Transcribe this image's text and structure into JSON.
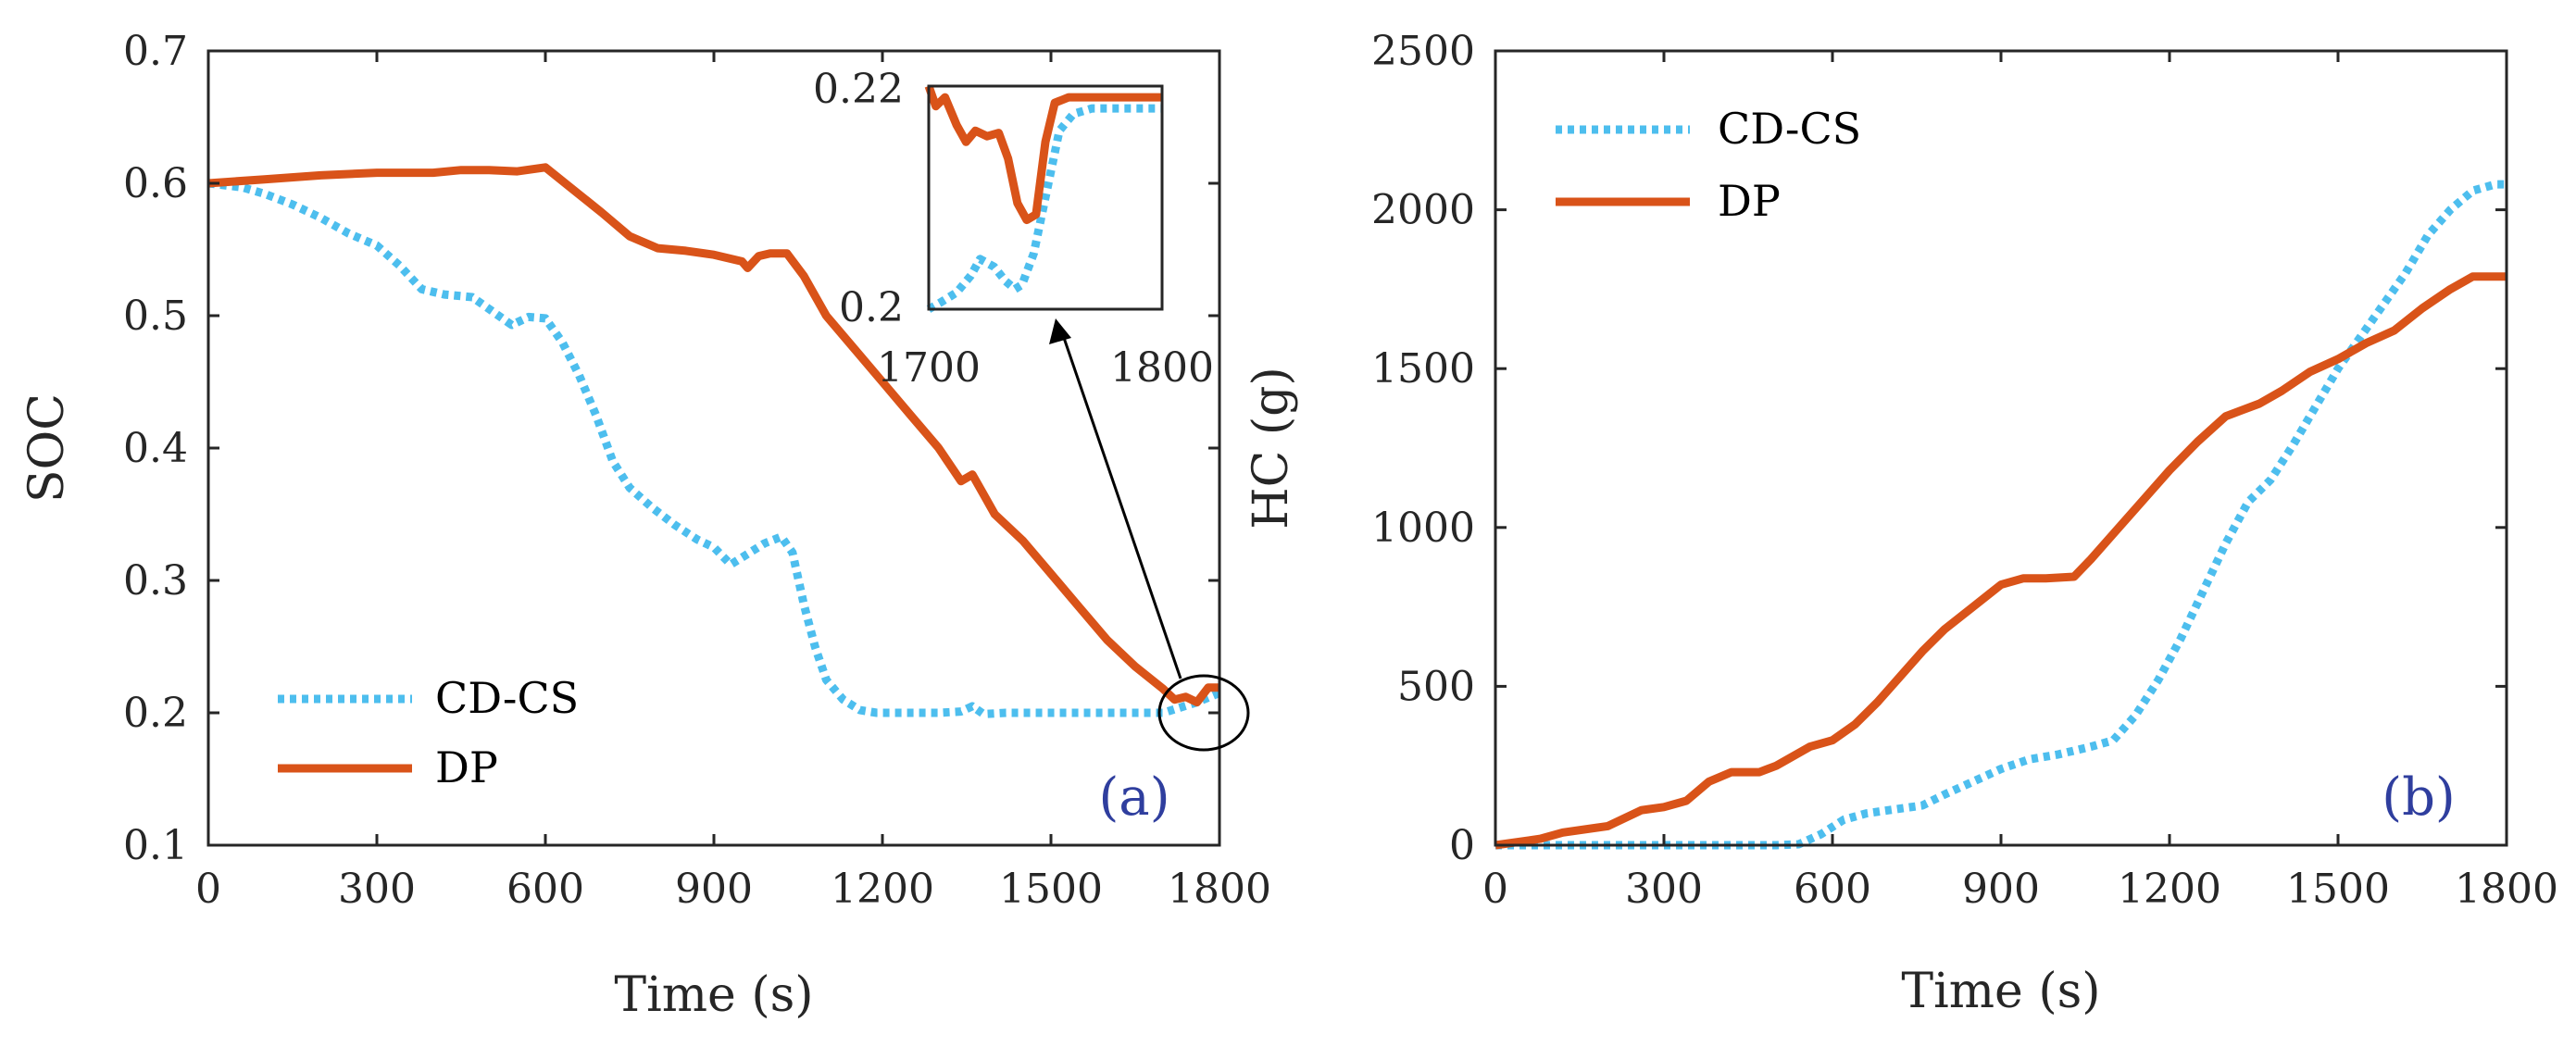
{
  "colors": {
    "cdcs": "#4DBEEE",
    "dp": "#D95319",
    "axis": "#262626",
    "panel_label": "#2F3E9E"
  },
  "chart_data": [
    {
      "type": "line",
      "panel": "(a)",
      "xlabel": "Time (s)",
      "ylabel": "SOC",
      "xlim": [
        0,
        1800
      ],
      "ylim": [
        0.1,
        0.7
      ],
      "xticks": [
        0,
        300,
        600,
        900,
        1200,
        1500,
        1800
      ],
      "yticks": [
        0.1,
        0.2,
        0.3,
        0.4,
        0.5,
        0.6,
        0.7
      ],
      "ytick_labels": [
        "0.1",
        "0.2",
        "0.3",
        "0.4",
        "0.5",
        "0.6",
        "0.7"
      ],
      "legend_position": "bottom-left",
      "series": [
        {
          "name": "CD-CS",
          "style": "dotted",
          "x": [
            0,
            60,
            100,
            150,
            200,
            250,
            300,
            340,
            380,
            420,
            470,
            500,
            540,
            570,
            600,
            630,
            660,
            690,
            720,
            750,
            790,
            830,
            870,
            900,
            930,
            960,
            990,
            1020,
            1040,
            1060,
            1080,
            1100,
            1130,
            1160,
            1190,
            1220,
            1260,
            1300,
            1340,
            1360,
            1380,
            1420,
            1500,
            1600,
            1700,
            1760,
            1800
          ],
          "y": [
            0.6,
            0.597,
            0.592,
            0.584,
            0.574,
            0.562,
            0.553,
            0.538,
            0.52,
            0.516,
            0.514,
            0.505,
            0.493,
            0.499,
            0.498,
            0.48,
            0.455,
            0.425,
            0.39,
            0.37,
            0.355,
            0.342,
            0.331,
            0.325,
            0.312,
            0.32,
            0.328,
            0.333,
            0.321,
            0.282,
            0.25,
            0.225,
            0.21,
            0.202,
            0.2,
            0.2,
            0.2,
            0.2,
            0.201,
            0.205,
            0.199,
            0.2,
            0.2,
            0.2,
            0.2,
            0.208,
            0.215
          ]
        },
        {
          "name": "DP",
          "style": "solid",
          "x": [
            0,
            100,
            200,
            300,
            400,
            450,
            500,
            550,
            600,
            650,
            700,
            750,
            800,
            850,
            900,
            950,
            960,
            980,
            1000,
            1030,
            1060,
            1100,
            1150,
            1200,
            1250,
            1300,
            1340,
            1360,
            1380,
            1400,
            1450,
            1500,
            1550,
            1600,
            1650,
            1700,
            1720,
            1740,
            1760,
            1780,
            1800
          ],
          "y": [
            0.6,
            0.603,
            0.606,
            0.608,
            0.608,
            0.61,
            0.61,
            0.609,
            0.612,
            0.595,
            0.578,
            0.56,
            0.551,
            0.549,
            0.546,
            0.541,
            0.536,
            0.545,
            0.547,
            0.547,
            0.53,
            0.5,
            0.475,
            0.45,
            0.425,
            0.4,
            0.375,
            0.38,
            0.365,
            0.35,
            0.33,
            0.305,
            0.28,
            0.255,
            0.235,
            0.218,
            0.21,
            0.212,
            0.208,
            0.219,
            0.219
          ]
        }
      ],
      "inset": {
        "xlim": [
          1700,
          1800
        ],
        "ylim": [
          0.2,
          0.22
        ],
        "xtick_labels": [
          "1700",
          "1800"
        ],
        "ytick_labels": [
          "0.2",
          "0.22"
        ],
        "series": [
          {
            "name": "CD-CS",
            "x": [
              1700,
              1705,
              1712,
              1718,
              1722,
              1728,
              1733,
              1737,
              1740,
              1745,
              1750,
              1756,
              1762,
              1770,
              1780,
              1800
            ],
            "y": [
              0.2,
              0.2006,
              0.2015,
              0.203,
              0.2045,
              0.2038,
              0.2025,
              0.2018,
              0.2022,
              0.205,
              0.21,
              0.216,
              0.2175,
              0.218,
              0.218,
              0.218
            ]
          },
          {
            "name": "DP",
            "x": [
              1700,
              1703,
              1707,
              1712,
              1716,
              1720,
              1725,
              1730,
              1734,
              1738,
              1742,
              1746,
              1750,
              1754,
              1760,
              1770,
              1785,
              1800
            ],
            "y": [
              0.22,
              0.2182,
              0.219,
              0.2165,
              0.215,
              0.216,
              0.2155,
              0.2158,
              0.2135,
              0.2095,
              0.208,
              0.2085,
              0.215,
              0.2185,
              0.219,
              0.219,
              0.219,
              0.219
            ]
          }
        ]
      }
    },
    {
      "type": "line",
      "panel": "(b)",
      "xlabel": "Time (s)",
      "ylabel": "HC (g)",
      "xlim": [
        0,
        1800
      ],
      "ylim": [
        0,
        2500
      ],
      "xticks": [
        0,
        300,
        600,
        900,
        1200,
        1500,
        1800
      ],
      "yticks": [
        0,
        500,
        1000,
        1500,
        2000,
        2500
      ],
      "legend_position": "top-left",
      "series": [
        {
          "name": "CD-CS",
          "style": "dotted",
          "x": [
            0,
            100,
            200,
            300,
            400,
            500,
            540,
            580,
            620,
            660,
            700,
            760,
            800,
            850,
            900,
            950,
            1000,
            1060,
            1100,
            1140,
            1180,
            1220,
            1260,
            1300,
            1340,
            1380,
            1420,
            1460,
            1500,
            1540,
            1580,
            1620,
            1660,
            1700,
            1740,
            1780,
            1800
          ],
          "y": [
            0,
            0,
            0,
            0,
            0,
            0,
            3,
            35,
            80,
            100,
            110,
            125,
            160,
            200,
            240,
            270,
            285,
            310,
            330,
            410,
            520,
            650,
            800,
            950,
            1080,
            1150,
            1260,
            1380,
            1500,
            1600,
            1700,
            1800,
            1920,
            2000,
            2060,
            2080,
            2080
          ]
        },
        {
          "name": "DP",
          "style": "solid",
          "x": [
            0,
            80,
            120,
            200,
            260,
            300,
            340,
            380,
            420,
            470,
            500,
            560,
            600,
            640,
            680,
            720,
            760,
            800,
            850,
            900,
            940,
            980,
            1030,
            1060,
            1100,
            1150,
            1200,
            1250,
            1300,
            1330,
            1360,
            1400,
            1450,
            1500,
            1550,
            1600,
            1650,
            1700,
            1740,
            1760,
            1800
          ],
          "y": [
            0,
            20,
            40,
            60,
            110,
            120,
            140,
            200,
            230,
            230,
            250,
            310,
            330,
            380,
            450,
            530,
            610,
            680,
            750,
            820,
            840,
            840,
            845,
            900,
            980,
            1080,
            1180,
            1270,
            1350,
            1370,
            1390,
            1430,
            1490,
            1530,
            1580,
            1620,
            1690,
            1750,
            1790,
            1790,
            1790
          ]
        }
      ]
    }
  ],
  "legend_a": {
    "cdcs": "CD-CS",
    "dp": "DP"
  },
  "legend_b": {
    "cdcs": "CD-CS",
    "dp": "DP"
  }
}
